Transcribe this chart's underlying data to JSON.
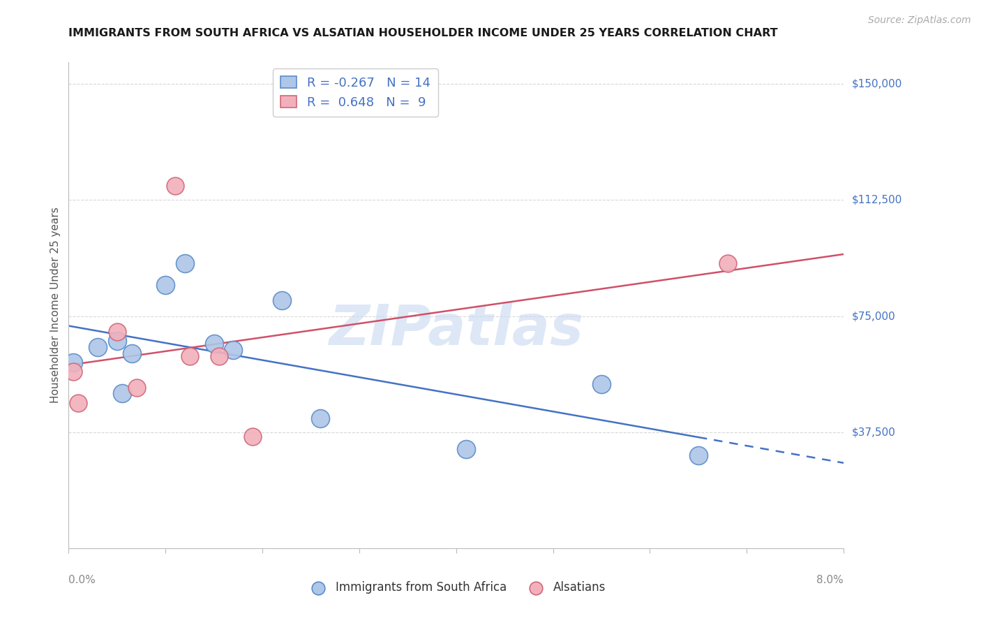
{
  "title": "IMMIGRANTS FROM SOUTH AFRICA VS ALSATIAN HOUSEHOLDER INCOME UNDER 25 YEARS CORRELATION CHART",
  "source": "Source: ZipAtlas.com",
  "ylabel": "Householder Income Under 25 years",
  "ytick_vals": [
    0,
    37500,
    75000,
    112500,
    150000
  ],
  "ytick_labels": [
    "",
    "$37,500",
    "$75,000",
    "$112,500",
    "$150,000"
  ],
  "xmin": 0.0,
  "xmax": 8.0,
  "ymin": 0,
  "ymax": 157000,
  "blue_r": "-0.267",
  "blue_n": "14",
  "pink_r": "0.648",
  "pink_n": "9",
  "blue_label": "Immigrants from South Africa",
  "pink_label": "Alsatians",
  "blue_fill": "#aec6e8",
  "pink_fill": "#f2b0bc",
  "blue_edge": "#5b8dc8",
  "pink_edge": "#d06878",
  "blue_line": "#4472c4",
  "pink_line": "#d05068",
  "watermark": "ZIPatlas",
  "blue_x": [
    0.05,
    0.3,
    0.5,
    0.55,
    0.65,
    1.0,
    1.2,
    1.5,
    1.7,
    2.2,
    2.6,
    4.1,
    5.5,
    6.5
  ],
  "blue_y": [
    60000,
    65000,
    67000,
    50000,
    63000,
    85000,
    92000,
    66000,
    64000,
    80000,
    42000,
    32000,
    53000,
    30000
  ],
  "pink_x": [
    0.05,
    0.1,
    0.5,
    0.7,
    1.1,
    1.25,
    1.55,
    1.9,
    6.8
  ],
  "pink_y": [
    57000,
    47000,
    70000,
    52000,
    117000,
    62000,
    62000,
    36000,
    92000
  ],
  "grid_color": "#d8d8d8",
  "title_color": "#1a1a1a",
  "right_label_color": "#4472c4",
  "axis_label_color": "#555555",
  "tick_label_color": "#888888",
  "watermark_color": "#c8d8f0",
  "legend_text_color": "#4472c4"
}
